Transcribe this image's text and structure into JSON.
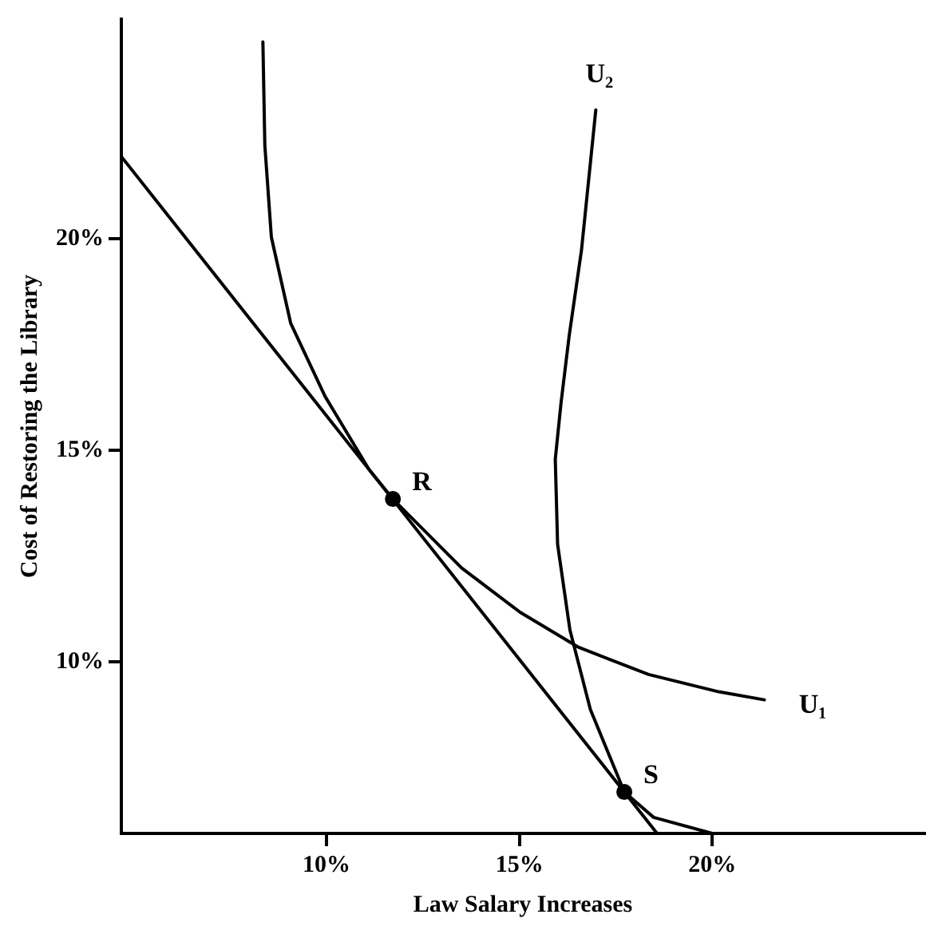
{
  "chart_data": {
    "type": "line",
    "xlabel": "Law Salary Increases",
    "ylabel": "Cost of Restoring the Library",
    "xlim": [
      4.68,
      25.5
    ],
    "ylim": [
      5.94,
      25.2
    ],
    "xticks": [
      {
        "value": 10,
        "label": "10%"
      },
      {
        "value": 15,
        "label": "15%"
      },
      {
        "value": 20,
        "label": "20%"
      }
    ],
    "yticks": [
      {
        "value": 10,
        "label": "10%"
      },
      {
        "value": 15,
        "label": "15%"
      },
      {
        "value": 20,
        "label": "20%"
      }
    ],
    "grid": false,
    "legend": false,
    "marker": "none",
    "line_style": "solid",
    "series": [
      {
        "color": "#000000",
        "x": [
          4.68,
          18.57
        ],
        "values": [
          21.95,
          5.94
        ]
      },
      {
        "name": "U₁",
        "color": "#000000",
        "x": [
          8.35,
          8.4,
          8.57,
          9.07,
          9.96,
          11.1,
          11.72,
          13.5,
          15.02,
          16.54,
          18.35,
          20.17,
          21.35
        ],
        "values": [
          24.66,
          22.22,
          20.04,
          18.01,
          16.28,
          14.55,
          13.85,
          12.22,
          11.17,
          10.34,
          9.7,
          9.29,
          9.1
        ]
      },
      {
        "name": "U₂",
        "color": "#000000",
        "x": [
          20.0,
          18.48,
          17.72,
          16.84,
          16.31,
          15.99,
          15.93,
          16.08,
          16.29,
          16.61,
          16.98
        ],
        "values": [
          5.94,
          6.32,
          6.92,
          8.87,
          10.75,
          12.78,
          14.79,
          16.13,
          17.71,
          19.74,
          23.05
        ]
      },
      {
        "name": "R",
        "type": "scatter",
        "marker": "circle",
        "color": "#000000",
        "x": [
          11.72
        ],
        "values": [
          13.85
        ]
      },
      {
        "name": "S",
        "type": "scatter",
        "marker": "circle",
        "color": "#000000",
        "x": [
          17.72
        ],
        "values": [
          6.92
        ]
      }
    ]
  }
}
